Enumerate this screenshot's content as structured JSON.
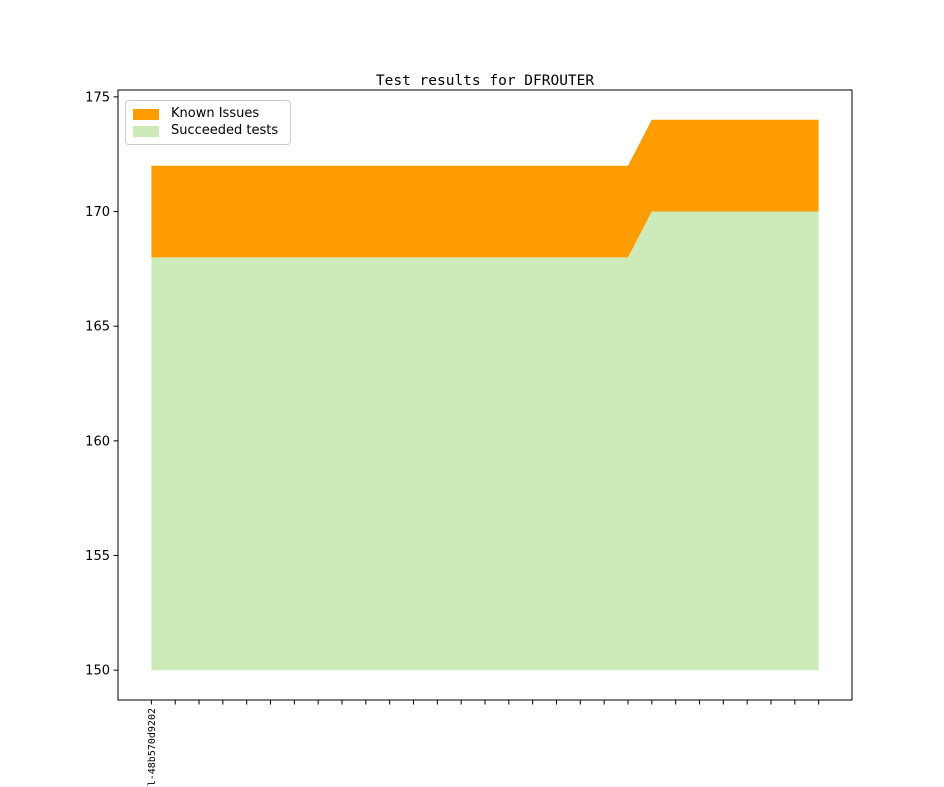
{
  "figure": {
    "title": "Test results for DFROUTER",
    "background_color": "#ffffff",
    "spine_color": "#000000"
  },
  "legend": {
    "position": "upper left",
    "items": [
      {
        "label": "Known Issues",
        "color": "#ff9c00"
      },
      {
        "label": "Succeeded tests",
        "color": "#cdebb9"
      }
    ]
  },
  "chart_data": {
    "type": "area",
    "stacked": true,
    "title": "Test results for DFROUTER",
    "xlabel": "",
    "ylabel": "",
    "grid": false,
    "legend_position": "upper left",
    "n_points": 29,
    "baseline": 150,
    "ylim": [
      148.7,
      175.3
    ],
    "yticks": [
      150,
      155,
      160,
      165,
      170,
      175
    ],
    "x_tick_labels": {
      "0": "l-48b570d9202"
    },
    "series": [
      {
        "name": "Succeeded tests",
        "color": "#cdebb9",
        "stacked_on_previous": false,
        "values": [
          168,
          168,
          168,
          168,
          168,
          168,
          168,
          168,
          168,
          168,
          168,
          168,
          168,
          168,
          168,
          168,
          168,
          168,
          168,
          168,
          168,
          170,
          170,
          170,
          170,
          170,
          170,
          170,
          170
        ]
      },
      {
        "name": "Known Issues",
        "color": "#ff9c00",
        "stacked_on_previous": true,
        "values": [
          4,
          4,
          4,
          4,
          4,
          4,
          4,
          4,
          4,
          4,
          4,
          4,
          4,
          4,
          4,
          4,
          4,
          4,
          4,
          4,
          4,
          4,
          4,
          4,
          4,
          4,
          4,
          4,
          4
        ]
      }
    ]
  }
}
